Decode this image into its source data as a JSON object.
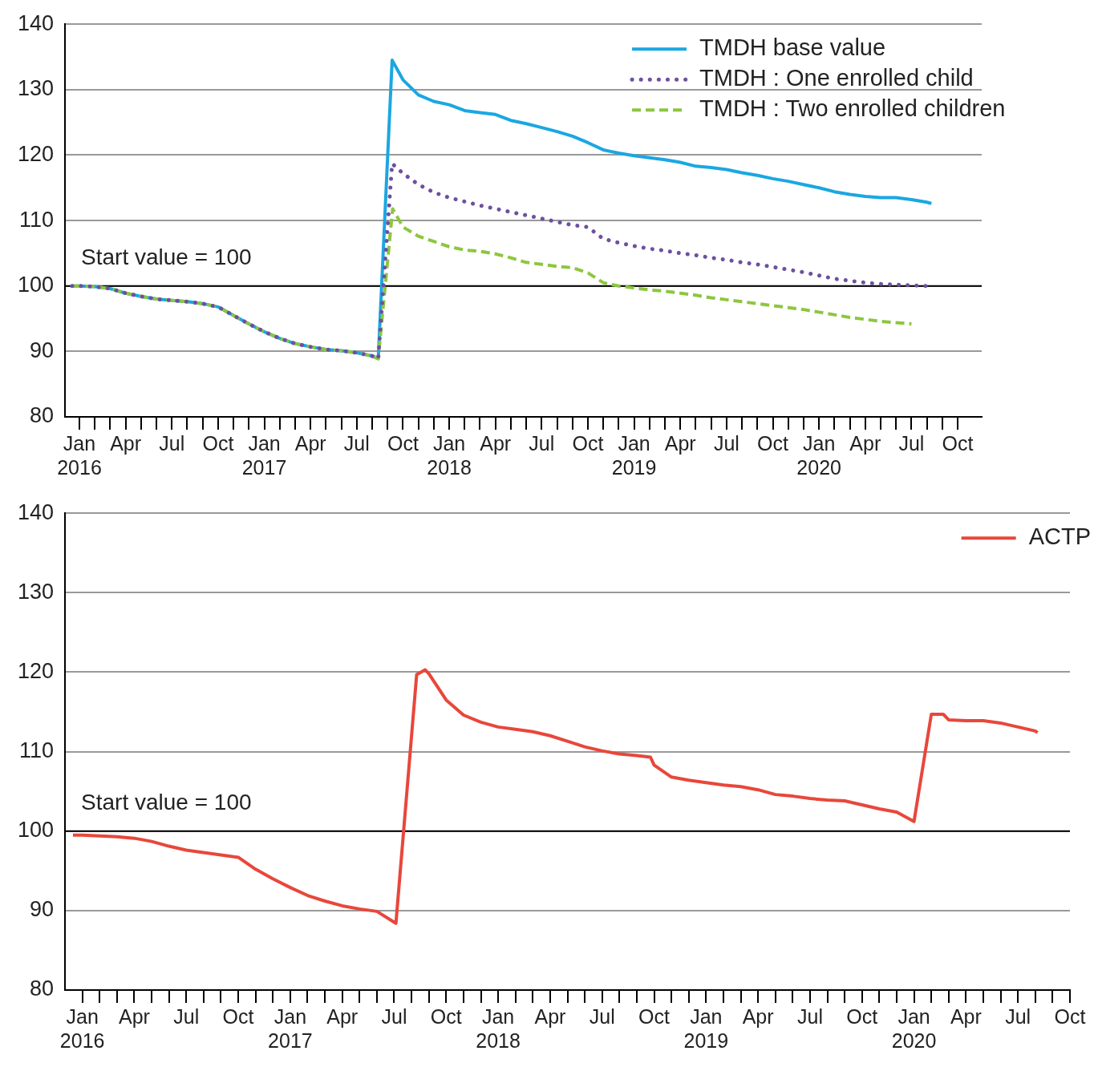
{
  "chart_data": [
    {
      "type": "line",
      "legend": "top right",
      "grid": "y",
      "xlim": [
        "2015-12-03",
        "2020-11-18"
      ],
      "ylim": [
        80,
        140
      ],
      "yticks": [
        80,
        90,
        100,
        110,
        120,
        130,
        140
      ],
      "xticks": [
        {
          "value": "2016-01",
          "label": "Jan\n2016"
        },
        {
          "value": "2016-02",
          "label": null
        },
        {
          "value": "2016-03",
          "label": null
        },
        {
          "value": "2016-04",
          "label": "Apr"
        },
        {
          "value": "2016-05",
          "label": null
        },
        {
          "value": "2016-06",
          "label": null
        },
        {
          "value": "2016-07",
          "label": "Jul"
        },
        {
          "value": "2016-08",
          "label": null
        },
        {
          "value": "2016-09",
          "label": null
        },
        {
          "value": "2016-10",
          "label": "Oct"
        },
        {
          "value": "2016-11",
          "label": null
        },
        {
          "value": "2016-12",
          "label": null
        },
        {
          "value": "2017-01",
          "label": "Jan\n2017"
        },
        {
          "value": "2017-02",
          "label": null
        },
        {
          "value": "2017-03",
          "label": null
        },
        {
          "value": "2017-04",
          "label": "Apr"
        },
        {
          "value": "2017-05",
          "label": null
        },
        {
          "value": "2017-06",
          "label": null
        },
        {
          "value": "2017-07",
          "label": "Jul"
        },
        {
          "value": "2017-08",
          "label": null
        },
        {
          "value": "2017-09",
          "label": null
        },
        {
          "value": "2017-10",
          "label": "Oct"
        },
        {
          "value": "2017-11",
          "label": null
        },
        {
          "value": "2017-12",
          "label": null
        },
        {
          "value": "2018-01",
          "label": "Jan\n2018"
        },
        {
          "value": "2018-02",
          "label": null
        },
        {
          "value": "2018-03",
          "label": null
        },
        {
          "value": "2018-04",
          "label": "Apr"
        },
        {
          "value": "2018-05",
          "label": null
        },
        {
          "value": "2018-06",
          "label": null
        },
        {
          "value": "2018-07",
          "label": "Jul"
        },
        {
          "value": "2018-08",
          "label": null
        },
        {
          "value": "2018-09",
          "label": null
        },
        {
          "value": "2018-10",
          "label": "Oct"
        },
        {
          "value": "2018-11",
          "label": null
        },
        {
          "value": "2018-12",
          "label": null
        },
        {
          "value": "2019-01",
          "label": "Jan\n2019"
        },
        {
          "value": "2019-02",
          "label": null
        },
        {
          "value": "2019-03",
          "label": null
        },
        {
          "value": "2019-04",
          "label": "Apr"
        },
        {
          "value": "2019-05",
          "label": null
        },
        {
          "value": "2019-06",
          "label": null
        },
        {
          "value": "2019-07",
          "label": "Jul"
        },
        {
          "value": "2019-08",
          "label": null
        },
        {
          "value": "2019-09",
          "label": null
        },
        {
          "value": "2019-10",
          "label": "Oct"
        },
        {
          "value": "2019-11",
          "label": null
        },
        {
          "value": "2019-12",
          "label": null
        },
        {
          "value": "2020-01",
          "label": "Jan\n2020"
        },
        {
          "value": "2020-02",
          "label": null
        },
        {
          "value": "2020-03",
          "label": null
        },
        {
          "value": "2020-04",
          "label": "Apr"
        },
        {
          "value": "2020-05",
          "label": null
        },
        {
          "value": "2020-06",
          "label": null
        },
        {
          "value": "2020-07",
          "label": "Jul"
        },
        {
          "value": "2020-08",
          "label": null
        },
        {
          "value": "2020-09",
          "label": null
        },
        {
          "value": "2020-10",
          "label": "Oct"
        }
      ],
      "ref_lines": [
        {
          "axis": "y",
          "value": 100,
          "label": "Start value = 100",
          "color": "#000000"
        }
      ],
      "series": [
        {
          "name": "TMDH base value",
          "color": "#1ba7e1",
          "line_style": "solid",
          "x": [
            "2015-12-17",
            "2016-01",
            "2016-02",
            "2016-03",
            "2016-04",
            "2016-05",
            "2016-06",
            "2016-07",
            "2016-08",
            "2016-09",
            "2016-10",
            "2016-11",
            "2016-12",
            "2017-01",
            "2017-02",
            "2017-03",
            "2017-04",
            "2017-05",
            "2017-06",
            "2017-07",
            "2017-08",
            "2017-08-13",
            "2017-09-10",
            "2017-10",
            "2017-11",
            "2017-12",
            "2018-01",
            "2018-02",
            "2018-03",
            "2018-04",
            "2018-05",
            "2018-06",
            "2018-07",
            "2018-08",
            "2018-09",
            "2018-10",
            "2018-11",
            "2018-12",
            "2019-01",
            "2019-02",
            "2019-03",
            "2019-04",
            "2019-05",
            "2019-06",
            "2019-07",
            "2019-08",
            "2019-09",
            "2019-10",
            "2019-11",
            "2019-12",
            "2020-01",
            "2020-02",
            "2020-03",
            "2020-04",
            "2020-05",
            "2020-06",
            "2020-07",
            "2020-08",
            "2020-08-10"
          ],
          "values": [
            100,
            100,
            99.9,
            99.6,
            98.9,
            98.4,
            98.0,
            97.8,
            97.6,
            97.3,
            96.8,
            95.5,
            94.2,
            93.0,
            92.0,
            91.2,
            90.7,
            90.3,
            90.1,
            89.8,
            89.3,
            88.9,
            134.5,
            131.5,
            129.2,
            128.2,
            127.7,
            126.8,
            126.5,
            126.2,
            125.3,
            124.8,
            124.2,
            123.6,
            122.9,
            121.9,
            120.8,
            120.3,
            119.9,
            119.6,
            119.3,
            118.9,
            118.3,
            118.1,
            117.8,
            117.3,
            116.9,
            116.4,
            116.0,
            115.5,
            115.0,
            114.4,
            114.0,
            113.7,
            113.5,
            113.5,
            113.2,
            112.8,
            112.6
          ]
        },
        {
          "name": "TMDH : One enrolled child",
          "color": "#6f4fa0",
          "line_style": "dotted",
          "x": [
            "2015-12-17",
            "2016-01",
            "2016-02",
            "2016-03",
            "2016-04",
            "2016-05",
            "2016-06",
            "2016-07",
            "2016-08",
            "2016-09",
            "2016-10",
            "2016-11",
            "2016-12",
            "2017-01",
            "2017-02",
            "2017-03",
            "2017-04",
            "2017-05",
            "2017-06",
            "2017-07",
            "2017-08",
            "2017-08-13",
            "2017-09-10",
            "2017-10",
            "2017-11",
            "2017-12",
            "2018-01",
            "2018-02",
            "2018-03",
            "2018-04",
            "2018-05",
            "2018-06",
            "2018-07",
            "2018-08",
            "2018-09",
            "2018-10",
            "2018-11",
            "2018-12",
            "2019-01",
            "2019-02",
            "2019-03",
            "2019-04",
            "2019-05",
            "2019-06",
            "2019-07",
            "2019-08",
            "2019-09",
            "2019-10",
            "2019-11",
            "2019-12",
            "2020-01",
            "2020-02",
            "2020-03",
            "2020-04",
            "2020-05",
            "2020-06",
            "2020-07",
            "2020-08"
          ],
          "values": [
            100,
            100,
            99.9,
            99.6,
            98.9,
            98.4,
            98.0,
            97.8,
            97.6,
            97.3,
            96.8,
            95.5,
            94.2,
            93.0,
            92.0,
            91.2,
            90.7,
            90.3,
            90.1,
            89.8,
            89.3,
            88.9,
            118.7,
            117.2,
            115.5,
            114.3,
            113.5,
            112.9,
            112.3,
            111.8,
            111.3,
            110.8,
            110.3,
            109.8,
            109.3,
            109.0,
            107.2,
            106.6,
            106.1,
            105.7,
            105.4,
            105.0,
            104.7,
            104.3,
            104.0,
            103.6,
            103.3,
            102.9,
            102.5,
            102.1,
            101.6,
            101.1,
            100.8,
            100.5,
            100.3,
            100.2,
            100.1,
            100.0
          ]
        },
        {
          "name": "TMDH : Two enrolled children",
          "color": "#8dc63f",
          "line_style": "dashed",
          "x": [
            "2015-12-17",
            "2016-01",
            "2016-02",
            "2016-03",
            "2016-04",
            "2016-05",
            "2016-06",
            "2016-07",
            "2016-08",
            "2016-09",
            "2016-10",
            "2016-11",
            "2016-12",
            "2017-01",
            "2017-02",
            "2017-03",
            "2017-04",
            "2017-05",
            "2017-06",
            "2017-07",
            "2017-08",
            "2017-08-13",
            "2017-09-11",
            "2017-10",
            "2017-11",
            "2017-12",
            "2018-01",
            "2018-02",
            "2018-03",
            "2018-04",
            "2018-05",
            "2018-06",
            "2018-07",
            "2018-08",
            "2018-09",
            "2018-10",
            "2018-11",
            "2018-12",
            "2019-01",
            "2019-02",
            "2019-03",
            "2019-04",
            "2019-05",
            "2019-06",
            "2019-07",
            "2019-08",
            "2019-09",
            "2019-10",
            "2019-11",
            "2019-12",
            "2020-01",
            "2020-02",
            "2020-03",
            "2020-04",
            "2020-05",
            "2020-06",
            "2020-07"
          ],
          "values": [
            100,
            100,
            99.9,
            99.6,
            98.9,
            98.4,
            98.0,
            97.8,
            97.6,
            97.3,
            96.8,
            95.5,
            94.2,
            93.0,
            92.0,
            91.2,
            90.7,
            90.3,
            90.1,
            89.8,
            89.3,
            88.9,
            111.8,
            109.0,
            107.6,
            106.8,
            106.0,
            105.5,
            105.3,
            104.9,
            104.3,
            103.6,
            103.3,
            103.0,
            102.8,
            102.0,
            100.5,
            100.0,
            99.7,
            99.4,
            99.2,
            98.9,
            98.6,
            98.2,
            97.9,
            97.6,
            97.3,
            97.0,
            96.7,
            96.4,
            96.0,
            95.6,
            95.2,
            94.9,
            94.6,
            94.4,
            94.2
          ]
        }
      ]
    },
    {
      "type": "line",
      "legend": "top right",
      "grid": "y",
      "xlim": [
        "2015-12-01",
        "2020-10-01"
      ],
      "ylim": [
        80,
        140
      ],
      "yticks": [
        80,
        90,
        100,
        110,
        120,
        130,
        140
      ],
      "xticks": [
        {
          "value": "2016-01",
          "label": "Jan\n2016"
        },
        {
          "value": "2016-02",
          "label": null
        },
        {
          "value": "2016-03",
          "label": null
        },
        {
          "value": "2016-04",
          "label": "Apr"
        },
        {
          "value": "2016-05",
          "label": null
        },
        {
          "value": "2016-06",
          "label": null
        },
        {
          "value": "2016-07",
          "label": "Jul"
        },
        {
          "value": "2016-08",
          "label": null
        },
        {
          "value": "2016-09",
          "label": null
        },
        {
          "value": "2016-10",
          "label": "Oct"
        },
        {
          "value": "2016-11",
          "label": null
        },
        {
          "value": "2016-12",
          "label": null
        },
        {
          "value": "2017-01",
          "label": "Jan\n2017"
        },
        {
          "value": "2017-02",
          "label": null
        },
        {
          "value": "2017-03",
          "label": null
        },
        {
          "value": "2017-04",
          "label": "Apr"
        },
        {
          "value": "2017-05",
          "label": null
        },
        {
          "value": "2017-06",
          "label": null
        },
        {
          "value": "2017-07",
          "label": "Jul"
        },
        {
          "value": "2017-08",
          "label": null
        },
        {
          "value": "2017-09",
          "label": null
        },
        {
          "value": "2017-10",
          "label": "Oct"
        },
        {
          "value": "2017-11",
          "label": null
        },
        {
          "value": "2017-12",
          "label": null
        },
        {
          "value": "2018-01",
          "label": "Jan\n2018"
        },
        {
          "value": "2018-02",
          "label": null
        },
        {
          "value": "2018-03",
          "label": null
        },
        {
          "value": "2018-04",
          "label": "Apr"
        },
        {
          "value": "2018-05",
          "label": null
        },
        {
          "value": "2018-06",
          "label": null
        },
        {
          "value": "2018-07",
          "label": "Jul"
        },
        {
          "value": "2018-08",
          "label": null
        },
        {
          "value": "2018-09",
          "label": null
        },
        {
          "value": "2018-10",
          "label": "Oct"
        },
        {
          "value": "2018-11",
          "label": null
        },
        {
          "value": "2018-12",
          "label": null
        },
        {
          "value": "2019-01",
          "label": "Jan\n2019"
        },
        {
          "value": "2019-02",
          "label": null
        },
        {
          "value": "2019-03",
          "label": null
        },
        {
          "value": "2019-04",
          "label": "Apr"
        },
        {
          "value": "2019-05",
          "label": null
        },
        {
          "value": "2019-06",
          "label": null
        },
        {
          "value": "2019-07",
          "label": "Jul"
        },
        {
          "value": "2019-08",
          "label": null
        },
        {
          "value": "2019-09",
          "label": null
        },
        {
          "value": "2019-10",
          "label": "Oct"
        },
        {
          "value": "2019-11",
          "label": null
        },
        {
          "value": "2019-12",
          "label": null
        },
        {
          "value": "2020-01",
          "label": "Jan\n2020"
        },
        {
          "value": "2020-02",
          "label": null
        },
        {
          "value": "2020-03",
          "label": null
        },
        {
          "value": "2020-04",
          "label": "Apr"
        },
        {
          "value": "2020-05",
          "label": null
        },
        {
          "value": "2020-06",
          "label": null
        },
        {
          "value": "2020-07",
          "label": "Jul"
        },
        {
          "value": "2020-08",
          "label": null
        },
        {
          "value": "2020-09",
          "label": null
        },
        {
          "value": "2020-10",
          "label": "Oct"
        }
      ],
      "ref_lines": [
        {
          "axis": "y",
          "value": 100,
          "label": "Start value = 100",
          "color": "#000000"
        }
      ],
      "series": [
        {
          "name": "ACTP",
          "color": "#e8473b",
          "line_style": "solid",
          "x": [
            "2015-12-15",
            "2016-01",
            "2016-02",
            "2016-03",
            "2016-04",
            "2016-05",
            "2016-06",
            "2016-07",
            "2016-08",
            "2016-09",
            "2016-10",
            "2016-11",
            "2016-12",
            "2017-01",
            "2017-02",
            "2017-03",
            "2017-04",
            "2017-05",
            "2017-06",
            "2017-07-04",
            "2017-08-10",
            "2017-08-25",
            "2017-09",
            "2017-10",
            "2017-11",
            "2017-12",
            "2018-01",
            "2018-02",
            "2018-03",
            "2018-04",
            "2018-05",
            "2018-06",
            "2018-07",
            "2018-08",
            "2018-09",
            "2018-09-25",
            "2018-10",
            "2018-11",
            "2018-12",
            "2019-01",
            "2019-02",
            "2019-03",
            "2019-04",
            "2019-05",
            "2019-06",
            "2019-07",
            "2019-08",
            "2019-09",
            "2019-10",
            "2019-11",
            "2019-12",
            "2020-01",
            "2020-02",
            "2020-02-22",
            "2020-03",
            "2020-04",
            "2020-05",
            "2020-06",
            "2020-07",
            "2020-08",
            "2020-08-05"
          ],
          "values": [
            99.5,
            99.5,
            99.4,
            99.3,
            99.1,
            98.7,
            98.1,
            97.6,
            97.3,
            97.0,
            96.7,
            95.2,
            94.0,
            92.9,
            91.9,
            91.2,
            90.6,
            90.2,
            89.9,
            88.4,
            119.7,
            120.3,
            119.8,
            116.5,
            114.6,
            113.7,
            113.1,
            112.8,
            112.5,
            112.0,
            111.3,
            110.6,
            110.1,
            109.7,
            109.5,
            109.3,
            108.3,
            106.8,
            106.4,
            106.1,
            105.8,
            105.6,
            105.2,
            104.6,
            104.4,
            104.1,
            103.9,
            103.8,
            103.3,
            102.8,
            102.4,
            101.2,
            114.7,
            114.7,
            114.0,
            113.9,
            113.9,
            113.6,
            113.1,
            112.6,
            112.4
          ]
        }
      ]
    }
  ]
}
